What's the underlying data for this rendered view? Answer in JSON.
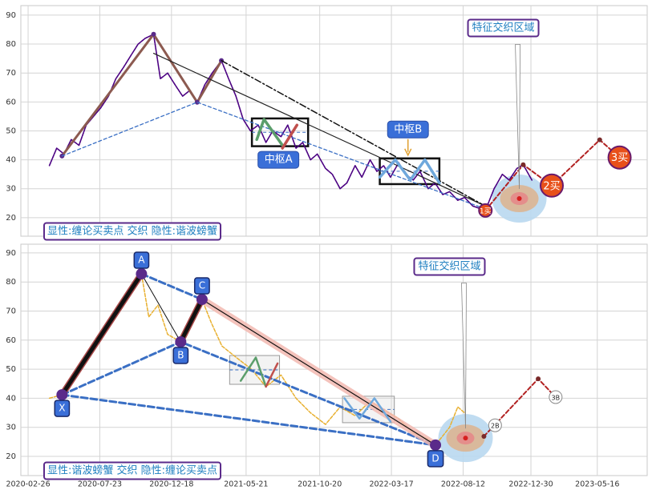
{
  "chart_data": [
    {
      "type": "line",
      "caption": "显性:缠论买卖点 交织 隐性:谐波螃蟹",
      "xlim": [
        "2020-02-11",
        "2023-08-27"
      ],
      "ylim": [
        13.6,
        93.3
      ],
      "yticks": [
        20,
        30,
        40,
        50,
        60,
        70,
        80,
        90
      ],
      "grid": true,
      "series": [
        {
          "color": "#4b0082",
          "width": 1.6,
          "dash": "4 1",
          "x": [
            "2020-04-10",
            "2020-04-25",
            "2020-05-10",
            "2020-05-25",
            "2020-06-10",
            "2020-06-25",
            "2020-07-10",
            "2020-07-25",
            "2020-08-10",
            "2020-08-25",
            "2020-09-10",
            "2020-09-25",
            "2020-10-10",
            "2020-10-25",
            "2020-11-11",
            "2020-11-25",
            "2020-12-10",
            "2020-12-25",
            "2021-01-10",
            "2021-01-25",
            "2021-02-09",
            "2021-02-25",
            "2021-03-12",
            "2021-03-31",
            "2021-04-15",
            "2021-04-30",
            "2021-05-15",
            "2021-05-30",
            "2021-06-15",
            "2021-07-01",
            "2021-07-15",
            "2021-08-01",
            "2021-08-15",
            "2021-09-01",
            "2021-09-15",
            "2021-10-01",
            "2021-10-15",
            "2021-11-01",
            "2021-11-15",
            "2021-12-01",
            "2021-12-15",
            "2022-01-01",
            "2022-01-15",
            "2022-02-01",
            "2022-02-15",
            "2022-03-01",
            "2022-03-15",
            "2022-04-01",
            "2022-04-15",
            "2022-05-01",
            "2022-05-15",
            "2022-06-01",
            "2022-06-15",
            "2022-07-01",
            "2022-07-15",
            "2022-08-01",
            "2022-08-15",
            "2022-09-01",
            "2022-09-27",
            "2022-10-15",
            "2022-11-01",
            "2022-11-15",
            "2022-12-01",
            "2022-12-14",
            "2023-01-01"
          ],
          "values": [
            38,
            44,
            42,
            47,
            45,
            52,
            55,
            58,
            62,
            68,
            72,
            76,
            80,
            82,
            83.4,
            68,
            70,
            66,
            62,
            64,
            59.9,
            66,
            70,
            74.3,
            68,
            62,
            54,
            50,
            52,
            46,
            50,
            48,
            52,
            44,
            46,
            40,
            42,
            37,
            35,
            30,
            32,
            38,
            34,
            40,
            36,
            38,
            34,
            39,
            35,
            33,
            36,
            30,
            32,
            28,
            29,
            26,
            27,
            24,
            22.5,
            30,
            35,
            33,
            37,
            38.3,
            33
          ]
        },
        {
          "color": "#8c5a50",
          "width": 3,
          "dots": true,
          "x": [
            "2020-05-06",
            "2020-11-11",
            "2021-02-09",
            "2021-03-31"
          ],
          "values": [
            41.3,
            83.4,
            59.9,
            74.3
          ]
        },
        {
          "color": "#222222",
          "width": 1.2,
          "x": [
            "2020-11-11",
            "2022-09-27"
          ],
          "values": [
            76.8,
            24
          ]
        },
        {
          "color": "#111111",
          "width": 1.5,
          "dash": "8 3 2 3",
          "x": [
            "2021-03-31",
            "2022-09-27"
          ],
          "values": [
            74.3,
            24
          ]
        },
        {
          "color": "#3a6fc4",
          "width": 1.3,
          "dash": "4 3",
          "x": [
            "2020-05-06",
            "2021-02-09",
            "2022-09-27"
          ],
          "values": [
            41.3,
            59.9,
            23
          ]
        },
        {
          "color": "#5b9e6b",
          "width": 3.5,
          "x": [
            "2021-06-12",
            "2021-06-27",
            "2021-08-04"
          ],
          "values": [
            47,
            54,
            45
          ]
        },
        {
          "color": "#c0504d",
          "width": 3.5,
          "x": [
            "2021-08-04",
            "2021-09-03"
          ],
          "values": [
            44,
            52
          ]
        },
        {
          "color": "#6fa8dc",
          "width": 3.5,
          "x": [
            "2022-02-21",
            "2022-03-25",
            "2022-04-25",
            "2022-05-25",
            "2022-06-24"
          ],
          "values": [
            34,
            40,
            33,
            40,
            32
          ]
        },
        {
          "color": "#b22222",
          "width": 2,
          "dash": "5 3",
          "dots": true,
          "x": [
            "2022-09-27",
            "2022-12-14",
            "2023-02-11",
            "2023-05-21",
            "2023-07-01"
          ],
          "values": [
            22.5,
            38.3,
            31.1,
            46.9,
            40.8
          ]
        }
      ],
      "zones": [
        {
          "label": "中枢A",
          "label_side": "below",
          "x": [
            "2021-06-02",
            "2021-09-26"
          ],
          "y": [
            44.7,
            54.3
          ]
        },
        {
          "label": "中枢B",
          "label_side": "above",
          "x": [
            "2022-02-21",
            "2022-06-24"
          ],
          "y": [
            31.6,
            40.5
          ]
        }
      ],
      "highlight": {
        "label": "特征交织区域",
        "x": "2022-12-06",
        "y": 26.6
      },
      "signal_fill": "#e8501a",
      "signals": [
        {
          "label": "1买",
          "x": "2022-09-27",
          "y": 22.5
        },
        {
          "label": "2买",
          "x": "2023-02-11",
          "y": 31.1
        },
        {
          "label": "3买",
          "x": "2023-07-01",
          "y": 40.8
        }
      ]
    },
    {
      "type": "line",
      "caption": "显性:谐波螃蟹 交织 隐性:缠论买卖点",
      "xlim": [
        "2020-02-11",
        "2023-08-27"
      ],
      "ylim": [
        13.4,
        93
      ],
      "yticks": [
        20,
        30,
        40,
        50,
        60,
        70,
        80,
        90
      ],
      "grid": true,
      "xticks": [
        "2020-02-26",
        "2020-07-23",
        "2020-12-18",
        "2021-05-21",
        "2021-10-20",
        "2022-03-17",
        "2022-08-12",
        "2022-12-30",
        "2023-05-16"
      ],
      "series": [
        {
          "color": "#e8b030",
          "width": 1.5,
          "dash": "4 2",
          "x": [
            "2020-04-10",
            "2020-05-06",
            "2020-06-01",
            "2020-07-01",
            "2020-08-01",
            "2020-09-01",
            "2020-10-01",
            "2020-10-17",
            "2020-11-01",
            "2020-11-20",
            "2020-12-10",
            "2021-01-06",
            "2021-01-25",
            "2021-02-19",
            "2021-03-10",
            "2021-04-01",
            "2021-05-01",
            "2021-06-01",
            "2021-07-01",
            "2021-08-01",
            "2021-09-01",
            "2021-10-01",
            "2021-11-01",
            "2021-12-01",
            "2022-01-01",
            "2022-02-01",
            "2022-03-01",
            "2022-04-01",
            "2022-05-01",
            "2022-06-01",
            "2022-06-16",
            "2022-07-15",
            "2022-08-01",
            "2022-08-15"
          ],
          "values": [
            40,
            41.2,
            48,
            55,
            64,
            72,
            79,
            82.8,
            68,
            72,
            62,
            59.4,
            66,
            74,
            66,
            58,
            54,
            50,
            44,
            48,
            40,
            35,
            31,
            37,
            34,
            39,
            36,
            33,
            28,
            26,
            23.9,
            30,
            37,
            35
          ]
        },
        {
          "color": "#3a6fc4",
          "width": 3,
          "dash": "8 4",
          "x": [
            "2020-05-06",
            "2022-06-16"
          ],
          "values": [
            41.2,
            23.9
          ]
        },
        {
          "color": "#3a6fc4",
          "width": 3,
          "dash": "8 4",
          "x": [
            "2020-05-06",
            "2021-01-06",
            "2022-06-16"
          ],
          "values": [
            41.2,
            59.4,
            23.9
          ]
        },
        {
          "color": "#3a6fc4",
          "width": 3,
          "dash": "8 4",
          "x": [
            "2020-10-17",
            "2021-02-19"
          ],
          "values": [
            82.8,
            74
          ]
        },
        {
          "color": "#111111",
          "width": 1,
          "x": [
            "2020-10-17",
            "2021-01-06"
          ],
          "values": [
            82.8,
            59.4
          ]
        },
        {
          "color": "#111111",
          "width": 5,
          "halo": "#9b2a2a",
          "x": [
            "2020-05-06",
            "2020-10-17"
          ],
          "values": [
            41.2,
            82.8
          ]
        },
        {
          "color": "#111111",
          "width": 5,
          "halo": "#9b2a2a",
          "x": [
            "2021-01-06",
            "2021-02-19"
          ],
          "values": [
            59.4,
            74
          ]
        },
        {
          "color": "#111111",
          "width": 1.2,
          "halo": "#f2b8b0",
          "x": [
            "2021-02-19",
            "2022-06-16"
          ],
          "values": [
            74,
            23.9
          ]
        },
        {
          "color": "#5b9e6b",
          "width": 2.5,
          "x": [
            "2021-05-10",
            "2021-06-10",
            "2021-07-01"
          ],
          "values": [
            46,
            54,
            44
          ]
        },
        {
          "color": "#c0504d",
          "width": 2.5,
          "x": [
            "2021-07-01",
            "2021-07-25"
          ],
          "values": [
            44,
            52
          ]
        },
        {
          "color": "#6fa8dc",
          "width": 2.5,
          "x": [
            "2021-12-10",
            "2022-01-10",
            "2022-02-10",
            "2022-03-15"
          ],
          "values": [
            40,
            33,
            40,
            32
          ]
        },
        {
          "color": "#b22222",
          "width": 2,
          "dash": "5 3",
          "dots": true,
          "x": [
            "2022-09-24",
            "2023-01-14",
            "2023-02-19"
          ],
          "values": [
            26.9,
            46.7,
            40.4
          ]
        }
      ],
      "zones": [
        {
          "x": [
            "2021-04-17",
            "2021-07-29"
          ],
          "y": [
            44.8,
            54.7
          ]
        },
        {
          "x": [
            "2021-12-06",
            "2022-03-23"
          ],
          "y": [
            31.6,
            40.7
          ]
        }
      ],
      "points": [
        {
          "label": "X",
          "x": "2020-05-06",
          "y": 41.2
        },
        {
          "label": "A",
          "x": "2020-10-17",
          "y": 82.8
        },
        {
          "label": "B",
          "x": "2021-01-06",
          "y": 59.4
        },
        {
          "label": "C",
          "x": "2021-02-19",
          "y": 74
        },
        {
          "label": "D",
          "x": "2022-06-16",
          "y": 23.9
        }
      ],
      "highlight": {
        "label": "特征交织区域",
        "x": "2022-08-17",
        "y": 26.3
      },
      "signal_fill": "#ffffff",
      "signals": [
        {
          "label": "2B",
          "x": "2022-10-17",
          "y": 30.7
        },
        {
          "label": "3B",
          "x": "2023-02-19",
          "y": 40.4
        }
      ]
    }
  ]
}
